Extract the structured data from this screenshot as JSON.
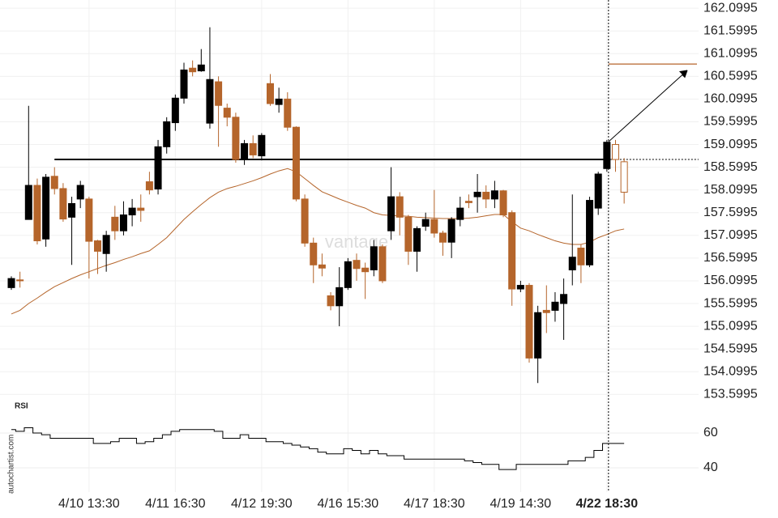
{
  "chart_data": [
    {
      "type": "candlestick",
      "watermark": "vantage",
      "categories": [
        null,
        null,
        null,
        null,
        null,
        null,
        null,
        null,
        null,
        "4/10 13:30",
        null,
        null,
        null,
        null,
        null,
        null,
        null,
        null,
        null,
        "4/11 16:30",
        null,
        null,
        null,
        null,
        null,
        null,
        null,
        null,
        null,
        "4/12 19:30",
        null,
        null,
        null,
        null,
        null,
        null,
        null,
        null,
        null,
        "4/16 15:30",
        null,
        null,
        null,
        null,
        null,
        null,
        null,
        null,
        null,
        "4/17 18:30",
        null,
        null,
        null,
        null,
        null,
        null,
        null,
        null,
        null,
        "4/19 14:30",
        null,
        null,
        null,
        null,
        null,
        null,
        null,
        null,
        null,
        "4/22 18:30",
        null,
        null
      ],
      "open": [
        155.95,
        156.12,
        157.45,
        158.2,
        157.02,
        158.4,
        158.13,
        157.5,
        157.9,
        157.9,
        156.98,
        156.7,
        157.5,
        157.2,
        157.55,
        157.7,
        158.28,
        158.12,
        159.05,
        159.58,
        160.12,
        160.78,
        160.72,
        159.57,
        160.48,
        159.9,
        159.7,
        158.77,
        159.12,
        158.85,
        160.44,
        159.98,
        160.1,
        159.48,
        157.9,
        156.93,
        156.45,
        155.77,
        155.55,
        155.95,
        156.55,
        156.38,
        156.34,
        156.85,
        157.2,
        157.95,
        157.5,
        156.75,
        157.3,
        157.45,
        157.15,
        156.95,
        157.45,
        157.85,
        157.95,
        158.05,
        157.9,
        158.08,
        157.6,
        155.92,
        156.0,
        154.4,
        155.45,
        155.45,
        155.6,
        156.34,
        156.82,
        156.45,
        157.7,
        158.57,
        159.1,
        158.72
      ],
      "high": [
        156.2,
        156.3,
        159.95,
        158.35,
        158.45,
        158.6,
        158.25,
        157.95,
        158.3,
        157.95,
        157.0,
        157.2,
        157.75,
        157.85,
        157.9,
        158.0,
        158.5,
        159.2,
        159.7,
        160.2,
        160.9,
        160.95,
        161.2,
        161.68,
        160.6,
        160.0,
        159.8,
        159.2,
        159.3,
        159.35,
        160.65,
        160.35,
        160.25,
        159.5,
        158.0,
        157.05,
        156.7,
        155.85,
        156.4,
        156.6,
        156.7,
        156.5,
        157.0,
        156.9,
        158.6,
        158.05,
        157.55,
        157.3,
        157.6,
        158.1,
        157.2,
        157.5,
        157.95,
        158.0,
        158.45,
        158.2,
        158.3,
        158.1,
        157.65,
        156.1,
        156.05,
        155.55,
        156.0,
        155.85,
        156.15,
        158.0,
        156.9,
        157.95,
        158.5,
        159.2,
        159.2,
        158.8
      ],
      "low": [
        155.9,
        155.95,
        157.45,
        156.9,
        156.85,
        158.0,
        157.4,
        156.45,
        157.7,
        156.15,
        156.25,
        156.3,
        157.0,
        157.1,
        157.3,
        157.4,
        158.0,
        158.0,
        158.9,
        159.4,
        160.0,
        160.6,
        160.7,
        159.45,
        159.05,
        159.5,
        158.7,
        158.65,
        158.8,
        158.75,
        159.95,
        159.8,
        159.4,
        157.85,
        156.85,
        156.05,
        156.2,
        155.45,
        155.1,
        155.9,
        156.1,
        155.7,
        156.2,
        156.05,
        157.0,
        157.1,
        156.45,
        156.3,
        157.2,
        157.05,
        156.65,
        156.6,
        157.3,
        157.7,
        157.6,
        157.7,
        157.7,
        157.5,
        155.55,
        155.85,
        154.3,
        153.85,
        154.95,
        155.2,
        154.8,
        156.0,
        156.05,
        156.4,
        157.55,
        158.5,
        158.5,
        157.8
      ],
      "close": [
        156.15,
        156.1,
        158.2,
        156.98,
        158.38,
        158.13,
        157.46,
        157.8,
        158.2,
        156.97,
        156.75,
        157.1,
        157.2,
        157.55,
        157.7,
        157.65,
        158.1,
        159.05,
        159.6,
        160.12,
        160.74,
        160.7,
        160.85,
        160.53,
        159.96,
        159.7,
        158.77,
        159.12,
        158.87,
        159.3,
        160.0,
        160.1,
        159.48,
        157.9,
        156.93,
        156.45,
        156.38,
        155.55,
        155.95,
        156.52,
        156.37,
        156.3,
        156.85,
        156.1,
        157.95,
        157.5,
        156.75,
        157.25,
        157.45,
        157.15,
        156.95,
        157.45,
        157.7,
        157.82,
        158.05,
        157.9,
        158.08,
        157.55,
        155.92,
        156.0,
        154.4,
        155.4,
        155.4,
        155.63,
        155.8,
        156.62,
        156.45,
        157.87,
        158.45,
        159.15,
        158.77,
        158.05
      ],
      "up_color": "#000000",
      "down_color": "#b5652b",
      "series": [
        {
          "values": [
            155.37,
            155.45,
            155.6,
            155.72,
            155.85,
            155.97,
            156.06,
            156.15,
            156.23,
            156.3,
            156.37,
            156.44,
            156.5,
            156.57,
            156.63,
            156.7,
            156.76,
            156.9,
            157.05,
            157.25,
            157.45,
            157.62,
            157.78,
            157.93,
            158.05,
            158.13,
            158.18,
            158.24,
            158.3,
            158.37,
            158.45,
            158.52,
            158.57,
            158.5,
            158.35,
            158.2,
            158.06,
            157.98,
            157.9,
            157.83,
            157.76,
            157.7,
            157.6,
            157.55,
            157.54,
            157.53,
            157.52,
            157.5,
            157.49,
            157.48,
            157.47,
            157.47,
            157.47,
            157.48,
            157.5,
            157.53,
            157.56,
            157.56,
            157.4,
            157.26,
            157.2,
            157.12,
            157.05,
            156.98,
            156.93,
            156.9,
            156.9,
            156.95,
            157.05,
            157.12,
            157.2,
            157.24
          ],
          "color": "#b5652b"
        }
      ],
      "resistance": 158.77,
      "target": 160.87,
      "arrow": {
        "from": 159.16,
        "to": 160.73
      },
      "ylim": [
        153.32,
        162.28
      ],
      "yticks": [
        153.5995,
        154.0995,
        154.5995,
        155.0995,
        155.5995,
        156.0995,
        156.5995,
        157.0995,
        157.5995,
        158.0995,
        158.5995,
        159.0995,
        159.5995,
        160.0995,
        160.5995,
        161.0995,
        161.5995,
        162.0995
      ],
      "grid": true
    },
    {
      "type": "line",
      "title": "RSI",
      "source": "autochartist.com",
      "series": [
        {
          "values": [
            62,
            61,
            63,
            60,
            59,
            57,
            57,
            57,
            57,
            57,
            54,
            54,
            55,
            57,
            57,
            54,
            55,
            57,
            59,
            61,
            62,
            62,
            62,
            62,
            61,
            57,
            57,
            59,
            57,
            57,
            55,
            55,
            54,
            53,
            52,
            51,
            49,
            48,
            48,
            51,
            50,
            48,
            50,
            48,
            47,
            47,
            45,
            45,
            45,
            45,
            45,
            45,
            45,
            44,
            43,
            42,
            42,
            39,
            39,
            42,
            42,
            42,
            42,
            42,
            42,
            44,
            44,
            46,
            50,
            54,
            54,
            54
          ],
          "color": "#000000"
        }
      ],
      "ylim": [
        26,
        70
      ],
      "yticks": [
        40,
        60
      ],
      "grid": true
    }
  ]
}
